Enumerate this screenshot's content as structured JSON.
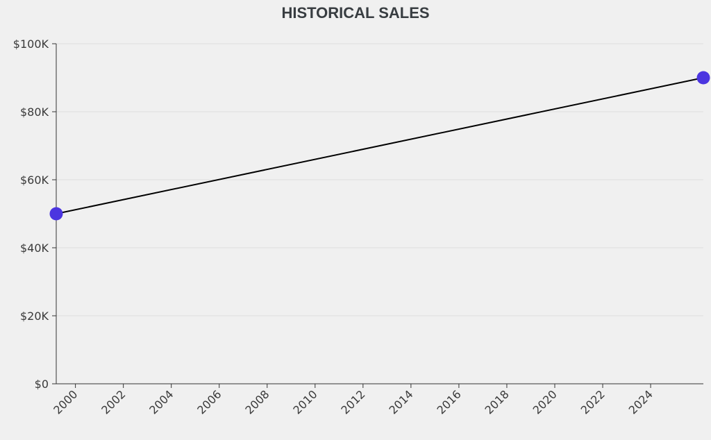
{
  "chart_data": {
    "type": "line",
    "title": "HISTORICAL SALES",
    "xlabel": "",
    "ylabel": "",
    "x_ticks": [
      "2000",
      "2002",
      "2004",
      "2006",
      "2008",
      "2010",
      "2012",
      "2014",
      "2016",
      "2018",
      "2020",
      "2022",
      "2024"
    ],
    "y_ticks": [
      "$0",
      "$20K",
      "$40K",
      "$60K",
      "$80K",
      "$100K"
    ],
    "xlim": [
      1999.2,
      2026.2
    ],
    "ylim": [
      0,
      100000
    ],
    "grid": true,
    "series": [
      {
        "color": "#000000",
        "marker_color": "#4b35e0",
        "points": [
          {
            "x": 1999.2,
            "y": 50000
          },
          {
            "x": 2026.2,
            "y": 90000
          }
        ]
      }
    ]
  }
}
